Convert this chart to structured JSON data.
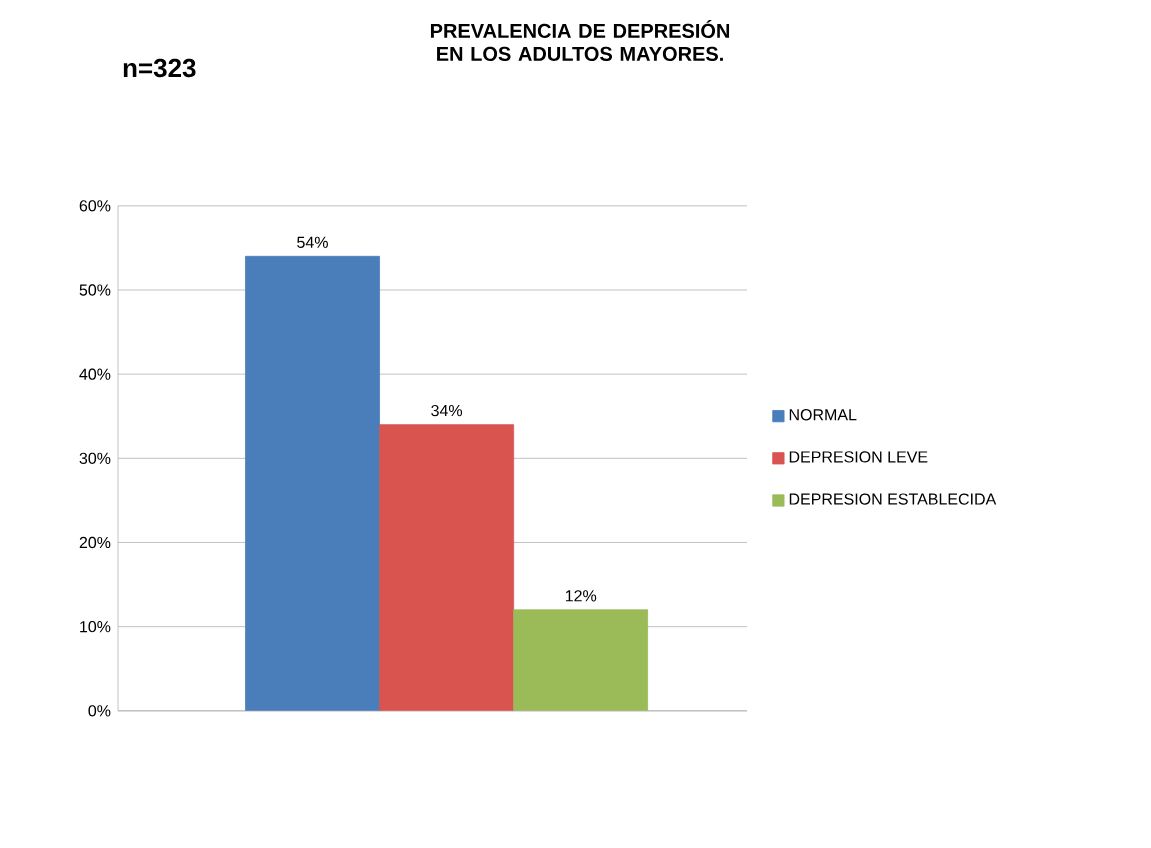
{
  "chart_data": {
    "type": "bar",
    "title": "PREVALENCIA DE DEPRESIÓN EN LOS ADULTOS MAYORES.",
    "annotations": [
      "n=323"
    ],
    "categories": [
      null
    ],
    "series": [
      {
        "name": "NORMAL",
        "color": "#4a7ebb",
        "values": [
          54
        ],
        "value_labels": [
          "54%"
        ]
      },
      {
        "name": "DEPRESION LEVE",
        "color": "#d9534f",
        "values": [
          34
        ],
        "value_labels": [
          "34%"
        ]
      },
      {
        "name": "DEPRESION ESTABLECIDA",
        "color": "#9bbb59",
        "values": [
          12
        ],
        "value_labels": [
          "12%"
        ]
      }
    ],
    "ylim": [
      0,
      60
    ],
    "yticks": [
      {
        "value": 0,
        "label": "0%"
      },
      {
        "value": 10,
        "label": "10%"
      },
      {
        "value": 20,
        "label": "20%"
      },
      {
        "value": 30,
        "label": "30%"
      },
      {
        "value": 40,
        "label": "40%"
      },
      {
        "value": 50,
        "label": "50%"
      },
      {
        "value": 60,
        "label": "60%"
      }
    ],
    "grid": "y",
    "legend": "right"
  }
}
